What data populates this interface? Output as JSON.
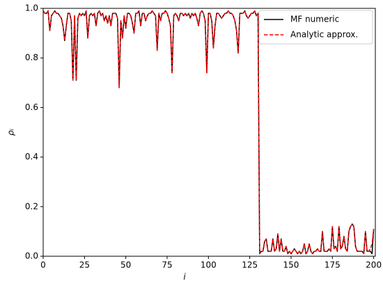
{
  "chart_data": {
    "type": "line",
    "xlabel": "i",
    "ylabel": "ρᵢ",
    "xlim": [
      0,
      201
    ],
    "ylim": [
      0,
      1
    ],
    "xticks": [
      0,
      25,
      50,
      75,
      100,
      125,
      150,
      175,
      200
    ],
    "yticks": [
      {
        "value": 0,
        "label": "0.0"
      },
      {
        "value": 0.2,
        "label": "0.2"
      },
      {
        "value": 0.4,
        "label": "0.4"
      },
      {
        "value": 0.6,
        "label": "0.6"
      },
      {
        "value": 0.8,
        "label": "0.8"
      },
      {
        "value": 1,
        "label": "1.0"
      }
    ],
    "legend": "upper right",
    "x": [
      0,
      1,
      2,
      3,
      4,
      5,
      6,
      7,
      8,
      9,
      10,
      11,
      12,
      13,
      14,
      15,
      16,
      17,
      18,
      19,
      20,
      21,
      22,
      23,
      24,
      25,
      26,
      27,
      28,
      29,
      30,
      31,
      32,
      33,
      34,
      35,
      36,
      37,
      38,
      39,
      40,
      41,
      42,
      43,
      44,
      45,
      46,
      47,
      48,
      49,
      50,
      51,
      52,
      53,
      54,
      55,
      56,
      57,
      58,
      59,
      60,
      61,
      62,
      63,
      64,
      65,
      66,
      67,
      68,
      69,
      70,
      71,
      72,
      73,
      74,
      75,
      76,
      77,
      78,
      79,
      80,
      81,
      82,
      83,
      84,
      85,
      86,
      87,
      88,
      89,
      90,
      91,
      92,
      93,
      94,
      95,
      96,
      97,
      98,
      99,
      100,
      101,
      102,
      103,
      104,
      105,
      106,
      107,
      108,
      109,
      110,
      111,
      112,
      113,
      114,
      115,
      116,
      117,
      118,
      119,
      120,
      121,
      122,
      123,
      124,
      125,
      126,
      127,
      128,
      129,
      130,
      131,
      132,
      133,
      134,
      135,
      136,
      137,
      138,
      139,
      140,
      141,
      142,
      143,
      144,
      145,
      146,
      147,
      148,
      149,
      150,
      151,
      152,
      153,
      154,
      155,
      156,
      157,
      158,
      159,
      160,
      161,
      162,
      163,
      164,
      165,
      166,
      167,
      168,
      169,
      170,
      171,
      172,
      173,
      174,
      175,
      176,
      177,
      178,
      179,
      180,
      181,
      182,
      183,
      184,
      185,
      186,
      187,
      188,
      189,
      190,
      191,
      192,
      193,
      194,
      195,
      196,
      197,
      198,
      199,
      200
    ],
    "series": [
      {
        "name": "MF numeric",
        "color": "#000000",
        "dash": false,
        "values": [
          0.99,
          0.98,
          0.98,
          0.99,
          0.91,
          0.97,
          0.98,
          0.99,
          0.98,
          0.98,
          0.97,
          0.96,
          0.93,
          0.87,
          0.93,
          0.98,
          0.98,
          0.95,
          0.71,
          0.97,
          0.71,
          0.96,
          0.98,
          0.97,
          0.98,
          0.97,
          0.99,
          0.88,
          0.97,
          0.98,
          0.97,
          0.98,
          0.93,
          0.98,
          0.99,
          0.97,
          0.98,
          0.95,
          0.97,
          0.94,
          0.97,
          0.93,
          0.98,
          0.98,
          0.98,
          0.96,
          0.68,
          0.95,
          0.88,
          0.97,
          0.92,
          0.98,
          0.98,
          0.97,
          0.94,
          0.9,
          0.98,
          0.98,
          0.99,
          0.93,
          0.98,
          0.98,
          0.95,
          0.97,
          0.98,
          0.98,
          0.99,
          0.98,
          0.97,
          0.83,
          0.98,
          0.95,
          0.98,
          0.98,
          0.99,
          0.98,
          0.96,
          0.93,
          0.74,
          0.97,
          0.98,
          0.97,
          0.95,
          0.98,
          0.98,
          0.97,
          0.98,
          0.97,
          0.98,
          0.96,
          0.98,
          0.97,
          0.98,
          0.96,
          0.93,
          0.98,
          0.99,
          0.98,
          0.95,
          0.74,
          0.98,
          0.98,
          0.95,
          0.84,
          0.93,
          0.98,
          0.98,
          0.97,
          0.96,
          0.97,
          0.98,
          0.98,
          0.99,
          0.98,
          0.98,
          0.97,
          0.95,
          0.91,
          0.82,
          0.98,
          0.98,
          0.98,
          0.99,
          0.97,
          0.96,
          0.97,
          0.98,
          0.98,
          0.99,
          0.97,
          0.98,
          0.01,
          0.02,
          0.02,
          0.06,
          0.07,
          0.02,
          0.02,
          0.02,
          0.07,
          0.02,
          0.03,
          0.09,
          0.02,
          0.07,
          0.02,
          0.02,
          0.04,
          0.01,
          0.02,
          0.01,
          0.02,
          0.03,
          0.02,
          0.01,
          0.02,
          0.01,
          0.02,
          0.05,
          0.01,
          0.02,
          0.05,
          0.02,
          0.01,
          0.02,
          0.02,
          0.03,
          0.02,
          0.02,
          0.1,
          0.02,
          0.02,
          0.02,
          0.03,
          0.02,
          0.12,
          0.03,
          0.04,
          0.02,
          0.12,
          0.03,
          0.04,
          0.08,
          0.03,
          0.02,
          0.1,
          0.12,
          0.13,
          0.12,
          0.04,
          0.02,
          0.02,
          0.02,
          0.02,
          0.01,
          0.1,
          0.02,
          0.02,
          0.02,
          0.01,
          0.11
        ]
      },
      {
        "name": "Analytic approx.",
        "color": "#ff0000",
        "dash": true,
        "values": [
          0.99,
          0.98,
          0.98,
          0.99,
          0.91,
          0.97,
          0.98,
          0.99,
          0.98,
          0.98,
          0.97,
          0.96,
          0.93,
          0.87,
          0.93,
          0.98,
          0.98,
          0.95,
          0.71,
          0.97,
          0.71,
          0.96,
          0.98,
          0.97,
          0.98,
          0.97,
          0.99,
          0.88,
          0.97,
          0.98,
          0.97,
          0.98,
          0.93,
          0.98,
          0.99,
          0.97,
          0.98,
          0.95,
          0.97,
          0.94,
          0.97,
          0.93,
          0.98,
          0.98,
          0.98,
          0.96,
          0.68,
          0.95,
          0.88,
          0.97,
          0.92,
          0.98,
          0.98,
          0.97,
          0.94,
          0.9,
          0.98,
          0.98,
          0.99,
          0.93,
          0.98,
          0.98,
          0.95,
          0.97,
          0.98,
          0.98,
          0.99,
          0.98,
          0.97,
          0.83,
          0.98,
          0.95,
          0.98,
          0.98,
          0.99,
          0.98,
          0.96,
          0.93,
          0.74,
          0.97,
          0.98,
          0.97,
          0.95,
          0.98,
          0.98,
          0.97,
          0.98,
          0.97,
          0.98,
          0.96,
          0.98,
          0.97,
          0.98,
          0.96,
          0.93,
          0.98,
          0.99,
          0.98,
          0.95,
          0.74,
          0.98,
          0.98,
          0.95,
          0.84,
          0.93,
          0.98,
          0.98,
          0.97,
          0.96,
          0.97,
          0.98,
          0.98,
          0.99,
          0.98,
          0.98,
          0.97,
          0.95,
          0.91,
          0.82,
          0.98,
          0.98,
          0.98,
          0.99,
          0.97,
          0.96,
          0.97,
          0.98,
          0.98,
          0.99,
          0.97,
          0.98,
          0.01,
          0.02,
          0.02,
          0.06,
          0.07,
          0.02,
          0.02,
          0.02,
          0.07,
          0.02,
          0.03,
          0.09,
          0.02,
          0.07,
          0.02,
          0.02,
          0.04,
          0.01,
          0.02,
          0.01,
          0.02,
          0.03,
          0.02,
          0.01,
          0.02,
          0.01,
          0.02,
          0.05,
          0.01,
          0.02,
          0.05,
          0.02,
          0.01,
          0.02,
          0.02,
          0.03,
          0.02,
          0.02,
          0.1,
          0.02,
          0.02,
          0.02,
          0.03,
          0.02,
          0.12,
          0.03,
          0.04,
          0.02,
          0.12,
          0.03,
          0.04,
          0.08,
          0.03,
          0.02,
          0.1,
          0.12,
          0.13,
          0.12,
          0.04,
          0.02,
          0.02,
          0.02,
          0.02,
          0.01,
          0.1,
          0.02,
          0.02,
          0.03,
          0.05,
          0.11
        ]
      }
    ]
  }
}
